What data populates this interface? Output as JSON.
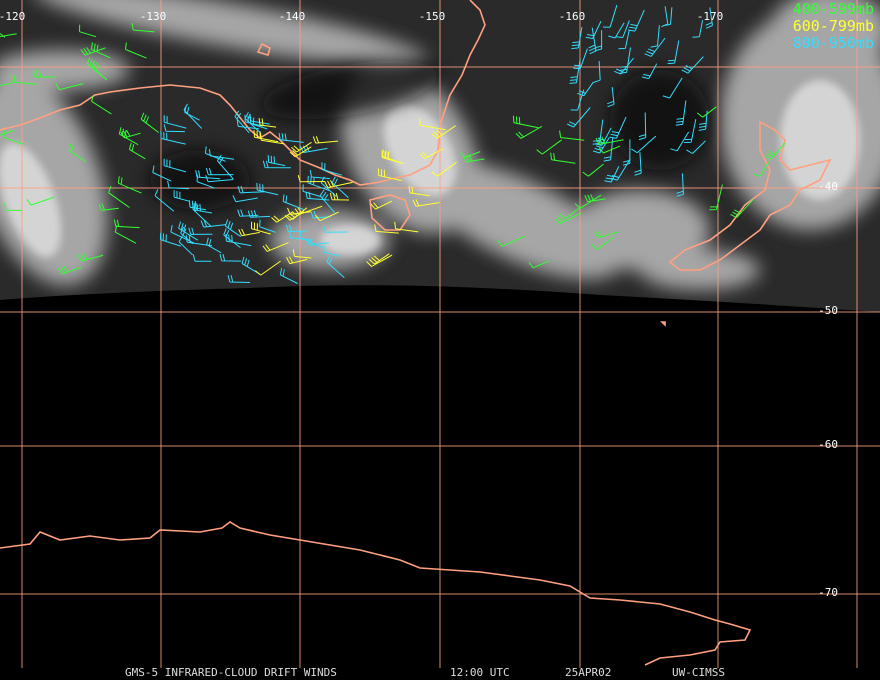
{
  "map": {
    "longitude_labels": [
      "-120",
      "-130",
      "-140",
      "-150",
      "-160",
      "-170"
    ],
    "latitude_labels": [
      "-40",
      "-50",
      "-60",
      "-70"
    ],
    "legend": [
      "400-599mb",
      "600-799mb",
      "800-950mb"
    ],
    "footer": [
      "GMS-5 INFRARED-CLOUD DRIFT WINDS",
      "12:00 UTC",
      "25APR02",
      "UW-CIMSS"
    ]
  }
}
